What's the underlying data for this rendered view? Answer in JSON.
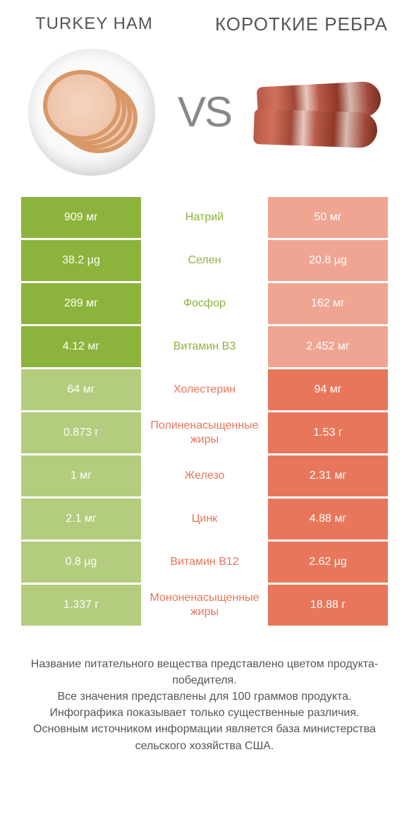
{
  "colors": {
    "left": "#8cb33b",
    "right": "#e8765a",
    "left_dim": "#b3cc7d",
    "right_dim": "#f0a592",
    "background": "#ffffff",
    "text_gray": "#555555"
  },
  "header": {
    "left_title": "TURKEY HAM",
    "right_title": "КОРОТКИЕ РЕБРА",
    "vs_label": "VS"
  },
  "rows": [
    {
      "label": "Натрий",
      "left": "909 мг",
      "right": "50 мг",
      "winner": "left"
    },
    {
      "label": "Селен",
      "left": "38.2 µg",
      "right": "20.8 µg",
      "winner": "left"
    },
    {
      "label": "Фосфор",
      "left": "289 мг",
      "right": "162 мг",
      "winner": "left"
    },
    {
      "label": "Витамин B3",
      "left": "4.12 мг",
      "right": "2.452 мг",
      "winner": "left"
    },
    {
      "label": "Холестерин",
      "left": "64 мг",
      "right": "94 мг",
      "winner": "right"
    },
    {
      "label": "Полиненасыщенные жиры",
      "left": "0.873 г",
      "right": "1.53 г",
      "winner": "right"
    },
    {
      "label": "Железо",
      "left": "1 мг",
      "right": "2.31 мг",
      "winner": "right"
    },
    {
      "label": "Цинк",
      "left": "2.1 мг",
      "right": "4.88 мг",
      "winner": "right"
    },
    {
      "label": "Витамин B12",
      "left": "0.8 µg",
      "right": "2.62 µg",
      "winner": "right"
    },
    {
      "label": "Мононенасыщенные жиры",
      "left": "1.337 г",
      "right": "18.88 г",
      "winner": "right"
    }
  ],
  "footer": {
    "text": "Название питательного вещества представлено цветом продукта-победителя.\nВсе значения представлены для 100 граммов продукта.\nИнфографика показывает только существенные различия.\nОсновным источником информации является база министерства сельского хозяйства США."
  }
}
